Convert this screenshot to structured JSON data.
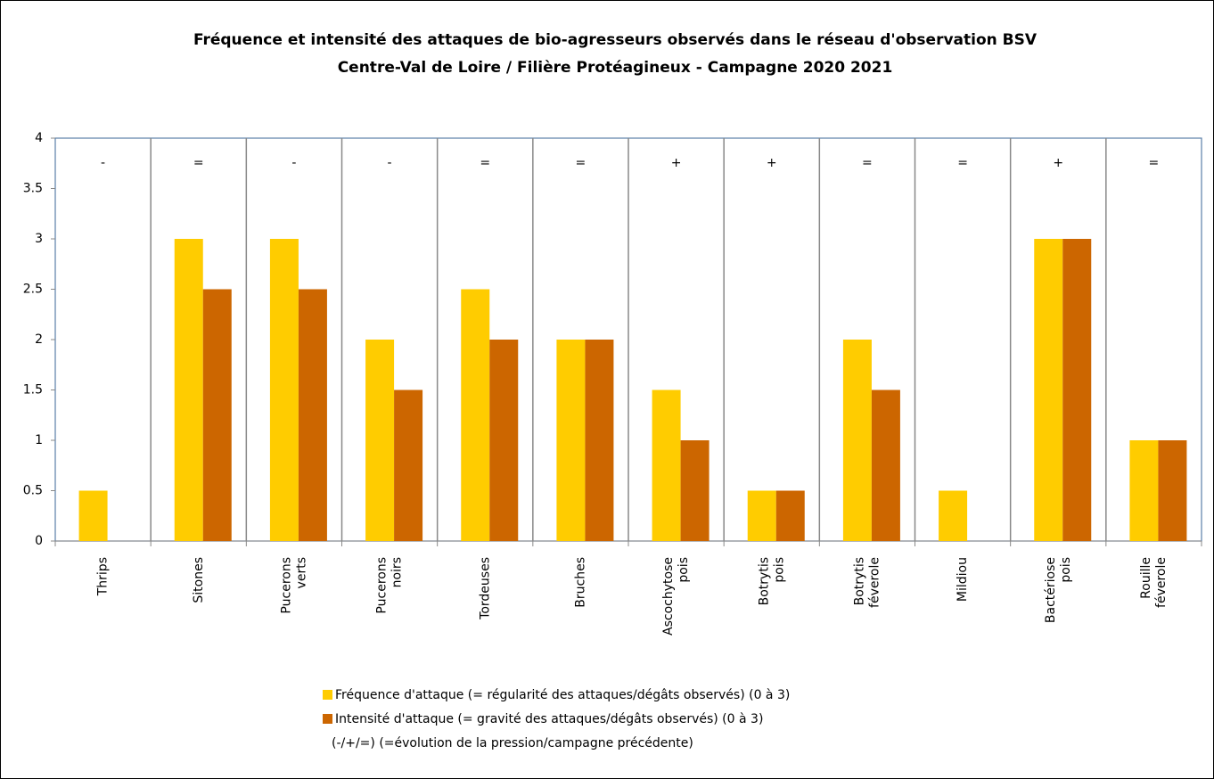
{
  "chart_data": {
    "type": "bar",
    "title": [
      "Fréquence et intensité des attaques de bio-agresseurs observés dans le réseau d'observation BSV",
      "Centre-Val de Loire  / Filière Protéagineux - Campagne 2020 2021"
    ],
    "categories": [
      "Thrips",
      "Sitones",
      "Pucerons verts",
      "Pucerons noirs",
      "Tordeuses",
      "Bruches",
      "Ascochytose pois",
      "Botrytis pois",
      "Botrytis féverole",
      "Mildiou",
      "Bactériose pois",
      "Rouille féverole"
    ],
    "series": [
      {
        "name": "Fréquence d'attaque (= régularité des attaques/dégâts observés) (0 à 3)",
        "color": "#ffcc00",
        "values": [
          0.5,
          3,
          3,
          2,
          2.5,
          2,
          1.5,
          0.5,
          2,
          0.5,
          3,
          1
        ]
      },
      {
        "name": "Intensité d'attaque (= gravité des attaques/dégâts observés) (0 à 3)",
        "color": "#cc6600",
        "values": [
          0,
          2.5,
          2.5,
          1.5,
          2,
          2,
          1,
          0.5,
          1.5,
          0,
          3,
          1
        ]
      }
    ],
    "annotations": [
      "-",
      "=",
      "-",
      "-",
      "=",
      "=",
      "+",
      "+",
      "=",
      "=",
      "+",
      "="
    ],
    "legend_note": "(-/+/=) (=évolution de la pression/campagne précédente)",
    "ylim": [
      0,
      4
    ],
    "yticks": [
      0,
      0.5,
      1,
      1.5,
      2,
      2.5,
      3,
      3.5,
      4
    ],
    "legend": "bottom"
  }
}
